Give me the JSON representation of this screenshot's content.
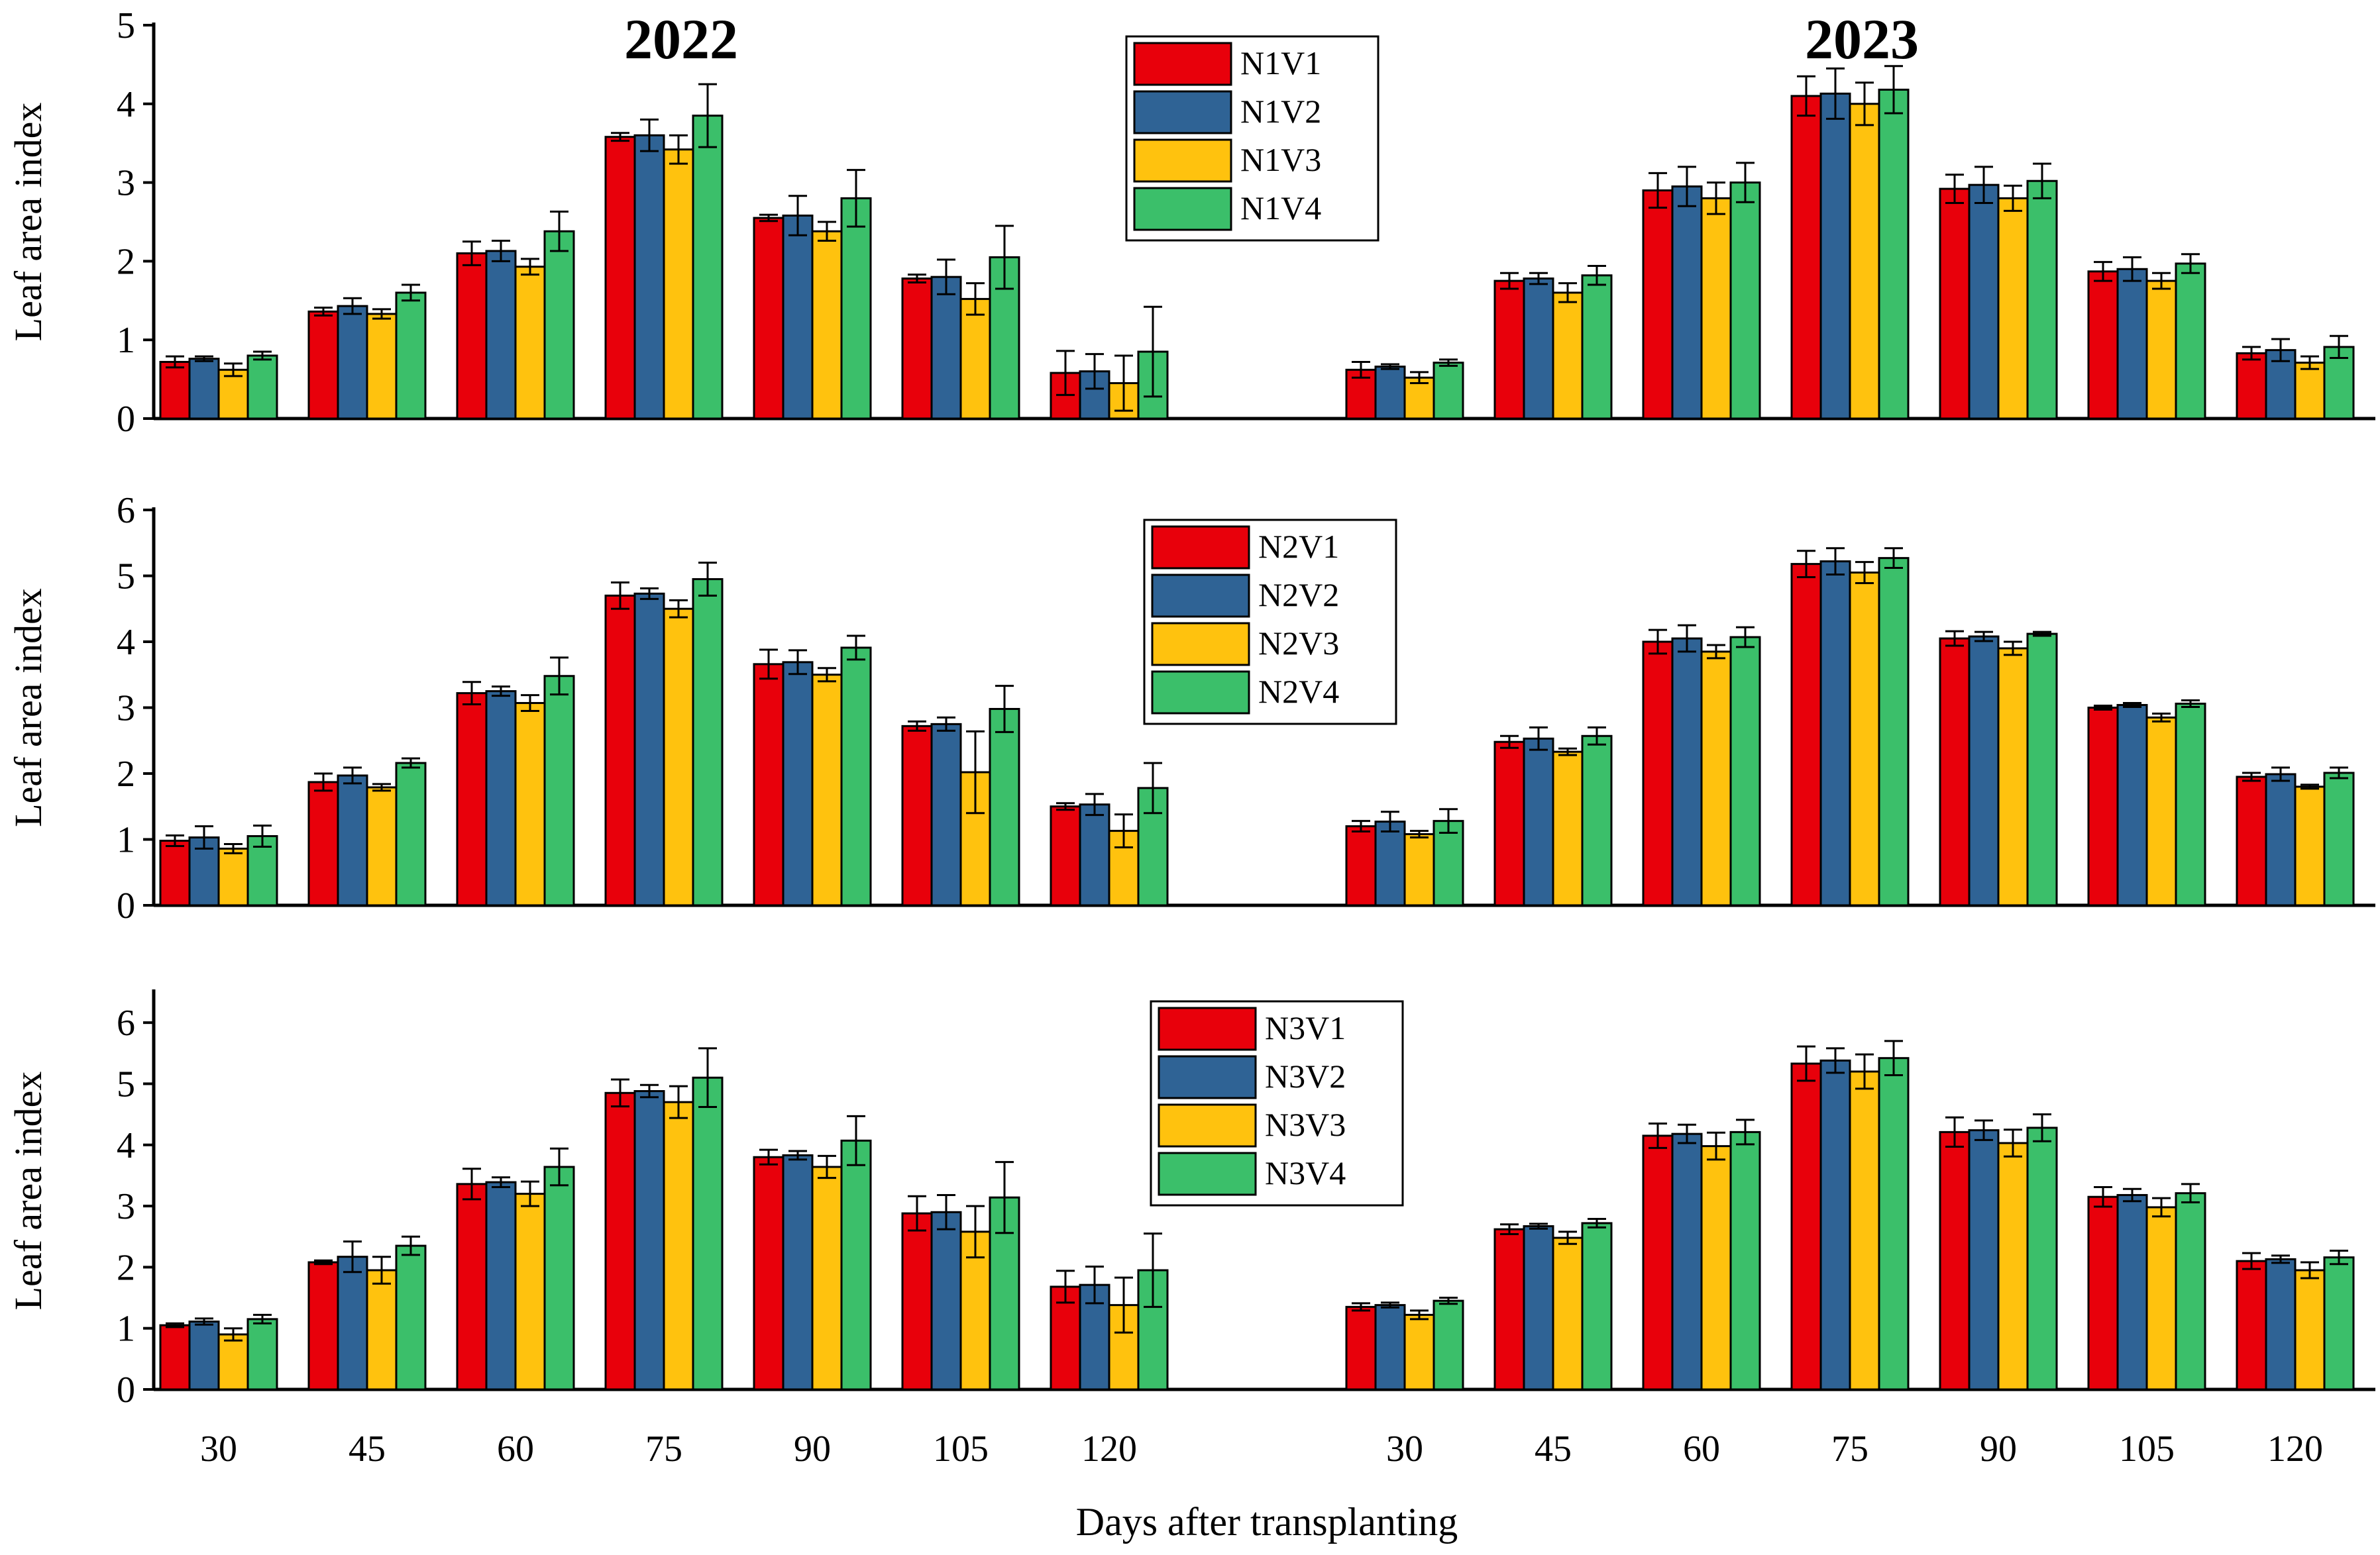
{
  "figure": {
    "xlabel": "Days after transplanting",
    "years": [
      "2022",
      "2023"
    ],
    "categories": [
      "30",
      "45",
      "60",
      "75",
      "90",
      "105",
      "120"
    ],
    "colors": {
      "V1": "#e8000b",
      "V2": "#2f6395",
      "V3": "#ffc20e",
      "V4": "#3bbf6a"
    }
  },
  "chart_data": [
    {
      "type": "bar",
      "title": "",
      "xlabel": "",
      "ylabel": "Leaf area index",
      "ylim": [
        0,
        5
      ],
      "yticks": [
        "0",
        "1",
        "2",
        "3",
        "4",
        "5"
      ],
      "legend_position": "top-center",
      "years": [
        "2022",
        "2023"
      ],
      "categories": [
        "30",
        "45",
        "60",
        "75",
        "90",
        "105",
        "120"
      ],
      "series": [
        {
          "name": "N1V1",
          "values_2022": [
            0.72,
            1.36,
            2.1,
            3.58,
            2.55,
            1.78,
            0.58
          ],
          "errors_2022": [
            0.07,
            0.05,
            0.15,
            0.05,
            0.04,
            0.05,
            0.28
          ],
          "values_2023": [
            0.62,
            1.75,
            2.9,
            4.1,
            2.92,
            1.87,
            0.83
          ],
          "errors_2023": [
            0.1,
            0.1,
            0.22,
            0.25,
            0.18,
            0.12,
            0.08
          ]
        },
        {
          "name": "N1V2",
          "values_2022": [
            0.76,
            1.43,
            2.13,
            3.6,
            2.58,
            1.8,
            0.6
          ],
          "errors_2022": [
            0.03,
            0.1,
            0.13,
            0.2,
            0.25,
            0.22,
            0.22
          ],
          "values_2023": [
            0.66,
            1.78,
            2.95,
            4.13,
            2.97,
            1.9,
            0.87
          ],
          "errors_2023": [
            0.03,
            0.07,
            0.25,
            0.32,
            0.23,
            0.15,
            0.14
          ]
        },
        {
          "name": "N1V3",
          "values_2022": [
            0.62,
            1.33,
            1.93,
            3.42,
            2.38,
            1.52,
            0.45
          ],
          "errors_2022": [
            0.08,
            0.06,
            0.1,
            0.18,
            0.12,
            0.2,
            0.35
          ],
          "values_2023": [
            0.52,
            1.6,
            2.8,
            4.0,
            2.8,
            1.75,
            0.71
          ],
          "errors_2023": [
            0.07,
            0.12,
            0.2,
            0.27,
            0.16,
            0.1,
            0.08
          ]
        },
        {
          "name": "N1V4",
          "values_2022": [
            0.8,
            1.6,
            2.38,
            3.85,
            2.8,
            2.05,
            0.85
          ],
          "errors_2022": [
            0.05,
            0.1,
            0.25,
            0.4,
            0.36,
            0.4,
            0.57
          ],
          "values_2023": [
            0.71,
            1.82,
            3.0,
            4.18,
            3.02,
            1.97,
            0.91
          ],
          "errors_2023": [
            0.04,
            0.12,
            0.25,
            0.3,
            0.22,
            0.12,
            0.14
          ]
        }
      ]
    },
    {
      "type": "bar",
      "title": "",
      "xlabel": "",
      "ylabel": "Leaf area index",
      "ylim": [
        0,
        6
      ],
      "yticks": [
        "0",
        "1",
        "2",
        "3",
        "4",
        "5",
        "6"
      ],
      "legend_position": "top-center",
      "years": [
        "2022",
        "2023"
      ],
      "categories": [
        "30",
        "45",
        "60",
        "75",
        "90",
        "105",
        "120"
      ],
      "series": [
        {
          "name": "N2V1",
          "values_2022": [
            0.98,
            1.87,
            3.22,
            4.7,
            3.66,
            2.72,
            1.5
          ],
          "errors_2022": [
            0.08,
            0.13,
            0.17,
            0.2,
            0.22,
            0.07,
            0.05
          ],
          "values_2023": [
            1.2,
            2.48,
            4.0,
            5.18,
            4.05,
            3.0,
            1.95
          ],
          "errors_2023": [
            0.08,
            0.09,
            0.18,
            0.2,
            0.11,
            0.03,
            0.06
          ]
        },
        {
          "name": "N2V2",
          "values_2022": [
            1.03,
            1.97,
            3.25,
            4.73,
            3.69,
            2.75,
            1.53
          ],
          "errors_2022": [
            0.17,
            0.12,
            0.07,
            0.08,
            0.18,
            0.1,
            0.16
          ],
          "values_2023": [
            1.27,
            2.53,
            4.05,
            5.22,
            4.08,
            3.04,
            1.99
          ],
          "errors_2023": [
            0.15,
            0.17,
            0.2,
            0.2,
            0.07,
            0.03,
            0.1
          ]
        },
        {
          "name": "N2V3",
          "values_2022": [
            0.86,
            1.79,
            3.07,
            4.5,
            3.5,
            2.02,
            1.13
          ],
          "errors_2022": [
            0.07,
            0.05,
            0.12,
            0.13,
            0.1,
            0.62,
            0.25
          ],
          "values_2023": [
            1.08,
            2.33,
            3.85,
            5.05,
            3.9,
            2.85,
            1.8
          ],
          "errors_2023": [
            0.05,
            0.05,
            0.1,
            0.16,
            0.1,
            0.06,
            0.03
          ]
        },
        {
          "name": "N2V4",
          "values_2022": [
            1.05,
            2.16,
            3.48,
            4.95,
            3.91,
            2.98,
            1.78
          ],
          "errors_2022": [
            0.16,
            0.07,
            0.28,
            0.25,
            0.18,
            0.35,
            0.38
          ],
          "values_2023": [
            1.28,
            2.57,
            4.07,
            5.27,
            4.12,
            3.06,
            2.01
          ],
          "errors_2023": [
            0.18,
            0.13,
            0.15,
            0.15,
            0.03,
            0.05,
            0.08
          ]
        }
      ]
    },
    {
      "type": "bar",
      "title": "",
      "xlabel": "Days after transplanting",
      "ylabel": "Leaf area index",
      "ylim": [
        0,
        6.5
      ],
      "yticks": [
        "0",
        "1",
        "2",
        "3",
        "4",
        "5",
        "6"
      ],
      "legend_position": "top-center",
      "years": [
        "2022",
        "2023"
      ],
      "categories": [
        "30",
        "45",
        "60",
        "75",
        "90",
        "105",
        "120"
      ],
      "series": [
        {
          "name": "N3V1",
          "values_2022": [
            1.05,
            2.08,
            3.36,
            4.85,
            3.8,
            2.88,
            1.68
          ],
          "errors_2022": [
            0.03,
            0.03,
            0.25,
            0.22,
            0.12,
            0.28,
            0.26
          ],
          "values_2023": [
            1.35,
            2.62,
            4.15,
            5.33,
            4.21,
            3.15,
            2.1
          ],
          "errors_2023": [
            0.06,
            0.08,
            0.2,
            0.28,
            0.24,
            0.16,
            0.13
          ]
        },
        {
          "name": "N3V2",
          "values_2022": [
            1.11,
            2.17,
            3.39,
            4.88,
            3.83,
            2.9,
            1.71
          ],
          "errors_2022": [
            0.05,
            0.25,
            0.08,
            0.1,
            0.07,
            0.28,
            0.3
          ],
          "values_2023": [
            1.38,
            2.67,
            4.18,
            5.38,
            4.24,
            3.18,
            2.13
          ],
          "errors_2023": [
            0.04,
            0.04,
            0.15,
            0.2,
            0.16,
            0.1,
            0.06
          ]
        },
        {
          "name": "N3V3",
          "values_2022": [
            0.9,
            1.95,
            3.2,
            4.7,
            3.64,
            2.58,
            1.38
          ],
          "errors_2022": [
            0.1,
            0.22,
            0.2,
            0.26,
            0.18,
            0.42,
            0.45
          ],
          "values_2023": [
            1.22,
            2.48,
            3.98,
            5.2,
            4.03,
            2.98,
            1.95
          ],
          "errors_2023": [
            0.07,
            0.1,
            0.22,
            0.28,
            0.22,
            0.15,
            0.13
          ]
        },
        {
          "name": "N3V4",
          "values_2022": [
            1.15,
            2.35,
            3.64,
            5.1,
            4.07,
            3.14,
            1.95
          ],
          "errors_2022": [
            0.07,
            0.15,
            0.3,
            0.48,
            0.4,
            0.58,
            0.6
          ],
          "values_2023": [
            1.45,
            2.72,
            4.21,
            5.42,
            4.28,
            3.21,
            2.16
          ],
          "errors_2023": [
            0.05,
            0.07,
            0.2,
            0.28,
            0.22,
            0.15,
            0.11
          ]
        }
      ]
    }
  ]
}
